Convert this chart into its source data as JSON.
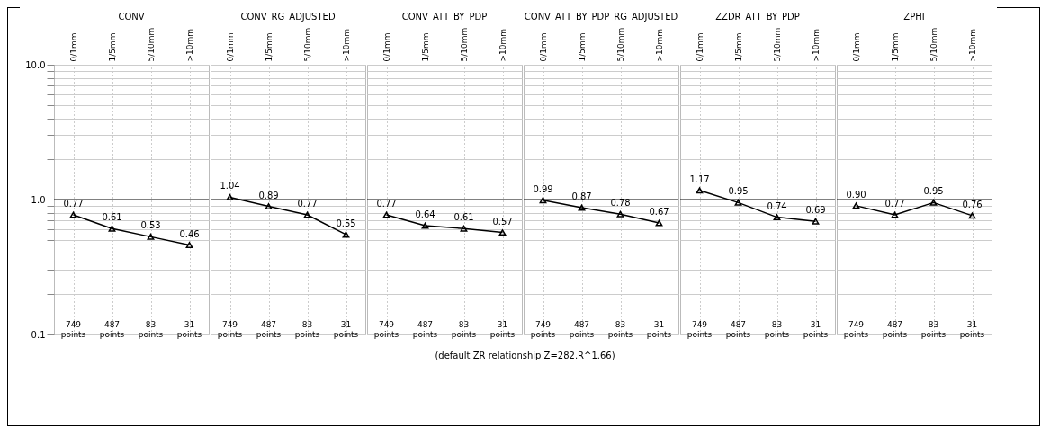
{
  "chart_data": [
    {
      "type": "line",
      "title": "CONV",
      "categories": [
        "0/1mm",
        "1/5mm",
        "5/10mm",
        ">10mm"
      ],
      "series": [
        {
          "color": "#000000",
          "values": [
            0.77,
            0.61,
            0.53,
            0.46
          ]
        }
      ],
      "value_labels": [
        "0.77",
        "0.61",
        "0.53",
        "0.46"
      ],
      "marker": "triangle",
      "log": true,
      "grid": true,
      "ylim": [
        0.1,
        10
      ],
      "yticks": [
        {
          "value": 0.1,
          "label": "0.1"
        },
        {
          "value": 0.2,
          "label": null
        },
        {
          "value": 0.3,
          "label": null
        },
        {
          "value": 0.4,
          "label": null
        },
        {
          "value": 0.5,
          "label": null
        },
        {
          "value": 0.6,
          "label": null
        },
        {
          "value": 0.7,
          "label": null
        },
        {
          "value": 0.8,
          "label": null
        },
        {
          "value": 0.9,
          "label": null
        },
        {
          "value": 1,
          "label": "1.0"
        },
        {
          "value": 2,
          "label": null
        },
        {
          "value": 3,
          "label": null
        },
        {
          "value": 4,
          "label": null
        },
        {
          "value": 5,
          "label": null
        },
        {
          "value": 6,
          "label": null
        },
        {
          "value": 7,
          "label": null
        },
        {
          "value": 8,
          "label": null
        },
        {
          "value": 9,
          "label": null
        },
        {
          "value": 10,
          "label": "10.0"
        }
      ],
      "ref_lines": [
        {
          "axis": "y",
          "value": 1,
          "color": "#000000"
        }
      ],
      "annotations": [
        "749 points",
        "487 points",
        "83 points",
        "31 points"
      ]
    },
    {
      "type": "line",
      "title": "CONV_RG_ADJUSTED",
      "categories": [
        "0/1mm",
        "1/5mm",
        "5/10mm",
        ">10mm"
      ],
      "series": [
        {
          "color": "#000000",
          "values": [
            1.04,
            0.89,
            0.77,
            0.55
          ]
        }
      ],
      "value_labels": [
        "1.04",
        "0.89",
        "0.77",
        "0.55"
      ],
      "marker": "triangle",
      "log": true,
      "grid": true,
      "tick_labels": "x",
      "ylim": [
        0.1,
        10
      ],
      "yticks": [
        0.1,
        0.2,
        0.3,
        0.4,
        0.5,
        0.6,
        0.7,
        0.8,
        0.9,
        1,
        2,
        3,
        4,
        5,
        6,
        7,
        8,
        9,
        10
      ],
      "ref_lines": [
        {
          "axis": "y",
          "value": 1,
          "color": "#000000"
        }
      ],
      "annotations": [
        "749 points",
        "487 points",
        "83 points",
        "31 points"
      ]
    },
    {
      "type": "line",
      "title": "CONV_ATT_BY_PDP",
      "categories": [
        "0/1mm",
        "1/5mm",
        "5/10mm",
        ">10mm"
      ],
      "series": [
        {
          "color": "#000000",
          "values": [
            0.77,
            0.64,
            0.61,
            0.57
          ]
        }
      ],
      "value_labels": [
        "0.77",
        "0.64",
        "0.61",
        "0.57"
      ],
      "marker": "triangle",
      "log": true,
      "grid": true,
      "tick_labels": "x",
      "ylim": [
        0.1,
        10
      ],
      "yticks": [
        0.1,
        0.2,
        0.3,
        0.4,
        0.5,
        0.6,
        0.7,
        0.8,
        0.9,
        1,
        2,
        3,
        4,
        5,
        6,
        7,
        8,
        9,
        10
      ],
      "ref_lines": [
        {
          "axis": "y",
          "value": 1,
          "color": "#000000"
        }
      ],
      "annotations": [
        "749 points",
        "487 points",
        "83 points",
        "31 points",
        "(default ZR relationship Z=282.R^1.66)"
      ]
    },
    {
      "type": "line",
      "title": "CONV_ATT_BY_PDP_RG_ADJUSTED",
      "categories": [
        "0/1mm",
        "1/5mm",
        "5/10mm",
        ">10mm"
      ],
      "series": [
        {
          "color": "#000000",
          "values": [
            0.99,
            0.87,
            0.78,
            0.67
          ]
        }
      ],
      "value_labels": [
        "0.99",
        "0.87",
        "0.78",
        "0.67"
      ],
      "marker": "triangle",
      "log": true,
      "grid": true,
      "tick_labels": "x",
      "ylim": [
        0.1,
        10
      ],
      "yticks": [
        0.1,
        0.2,
        0.3,
        0.4,
        0.5,
        0.6,
        0.7,
        0.8,
        0.9,
        1,
        2,
        3,
        4,
        5,
        6,
        7,
        8,
        9,
        10
      ],
      "ref_lines": [
        {
          "axis": "y",
          "value": 1,
          "color": "#000000"
        }
      ],
      "annotations": [
        "749 points",
        "487 points",
        "83 points",
        "31 points"
      ]
    },
    {
      "type": "line",
      "title": "ZZDR_ATT_BY_PDP",
      "categories": [
        "0/1mm",
        "1/5mm",
        "5/10mm",
        ">10mm"
      ],
      "series": [
        {
          "color": "#000000",
          "values": [
            1.17,
            0.95,
            0.74,
            0.69
          ]
        }
      ],
      "value_labels": [
        "1.17",
        "0.95",
        "0.74",
        "0.69"
      ],
      "marker": "triangle",
      "log": true,
      "grid": true,
      "tick_labels": "x",
      "ylim": [
        0.1,
        10
      ],
      "yticks": [
        0.1,
        0.2,
        0.3,
        0.4,
        0.5,
        0.6,
        0.7,
        0.8,
        0.9,
        1,
        2,
        3,
        4,
        5,
        6,
        7,
        8,
        9,
        10
      ],
      "ref_lines": [
        {
          "axis": "y",
          "value": 1,
          "color": "#000000"
        }
      ],
      "annotations": [
        "749 points",
        "487 points",
        "83 points",
        "31 points"
      ]
    },
    {
      "type": "line",
      "title": "ZPHI",
      "categories": [
        "0/1mm",
        "1/5mm",
        "5/10mm",
        ">10mm"
      ],
      "series": [
        {
          "color": "#000000",
          "values": [
            0.9,
            0.77,
            0.95,
            0.76
          ]
        }
      ],
      "value_labels": [
        "0.90",
        "0.77",
        "0.95",
        "0.76"
      ],
      "marker": "triangle",
      "log": true,
      "grid": true,
      "tick_labels": "x",
      "ylim": [
        0.1,
        10
      ],
      "yticks": [
        0.1,
        0.2,
        0.3,
        0.4,
        0.5,
        0.6,
        0.7,
        0.8,
        0.9,
        1,
        2,
        3,
        4,
        5,
        6,
        7,
        8,
        9,
        10
      ],
      "ref_lines": [
        {
          "axis": "y",
          "value": 1,
          "color": "#000000"
        }
      ],
      "annotations": [
        "749 points",
        "487 points",
        "83 points",
        "31 points"
      ]
    }
  ]
}
